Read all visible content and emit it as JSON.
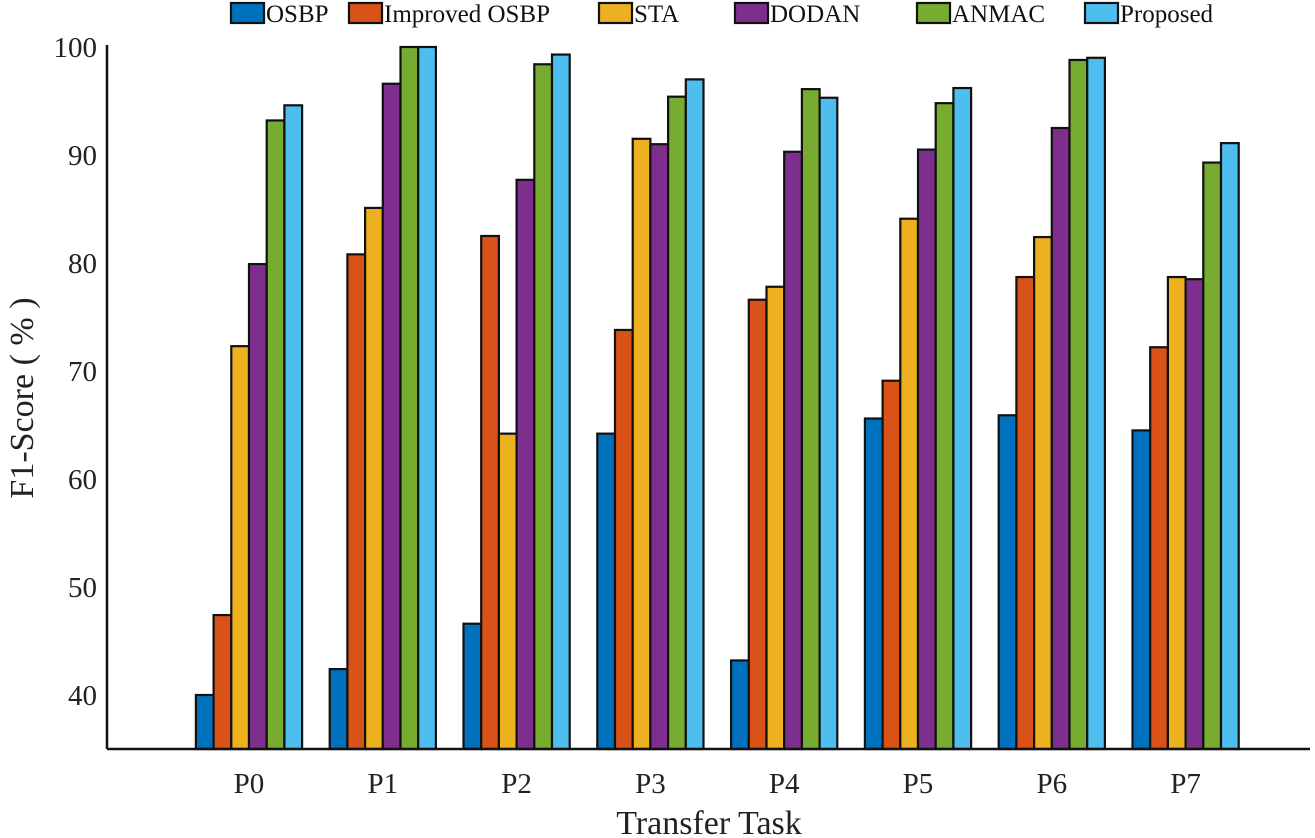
{
  "chart_data": {
    "type": "bar",
    "title": "",
    "xlabel": "Transfer Task",
    "ylabel": "F1-Score ( % )",
    "ylim": [
      35,
      100
    ],
    "yticks": [
      40,
      50,
      60,
      70,
      80,
      90,
      100
    ],
    "categories": [
      "P0",
      "P1",
      "P2",
      "P3",
      "P4",
      "P5",
      "P6",
      "P7"
    ],
    "legend_position": "top",
    "grid": false,
    "series": [
      {
        "name": "OSBP",
        "color": "#0072BD",
        "values": [
          40.0,
          42.4,
          46.6,
          64.2,
          43.2,
          65.6,
          65.9,
          64.5
        ]
      },
      {
        "name": "Improved OSBP",
        "color": "#D95319",
        "values": [
          47.4,
          80.8,
          82.5,
          73.8,
          76.6,
          69.1,
          78.7,
          72.2
        ]
      },
      {
        "name": "STA",
        "color": "#EDB120",
        "values": [
          72.3,
          85.1,
          64.2,
          91.5,
          77.8,
          84.1,
          82.4,
          78.7
        ]
      },
      {
        "name": "DODAN",
        "color": "#7E2F8E",
        "values": [
          79.9,
          96.6,
          87.7,
          91.0,
          90.3,
          90.5,
          92.5,
          78.5
        ]
      },
      {
        "name": "ANMAC",
        "color": "#77AC30",
        "values": [
          93.2,
          100.0,
          98.4,
          95.4,
          96.1,
          94.8,
          98.8,
          89.3
        ]
      },
      {
        "name": "Proposed",
        "color": "#4DBEEE",
        "values": [
          94.6,
          100.0,
          99.3,
          97.0,
          95.3,
          96.2,
          99.0,
          91.1
        ]
      }
    ]
  }
}
